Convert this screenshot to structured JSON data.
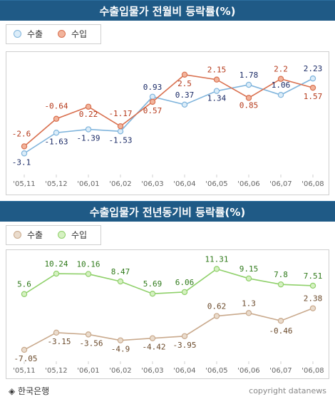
{
  "chart_data": [
    {
      "type": "line",
      "title": "수출입물가 전월비 등락률(%)",
      "categories": [
        "'05,11",
        "'05,12",
        "'06,01",
        "'06,02",
        "'06,03",
        "'06,04",
        "'06,05",
        "'06,06",
        "'06,07",
        "'06,08"
      ],
      "series": [
        {
          "name": "수출",
          "values": [
            -3.1,
            -1.63,
            -1.39,
            -1.53,
            0.93,
            0.37,
            1.34,
            1.78,
            1.06,
            2.23
          ],
          "color": "#7fb4dc"
        },
        {
          "name": "수입",
          "values": [
            -2.6,
            -0.64,
            0.22,
            -1.17,
            0.57,
            2.5,
            2.15,
            0.85,
            2.2,
            1.57
          ],
          "color": "#d9704f"
        }
      ],
      "ylim": [
        -4,
        3.2
      ],
      "grid": false,
      "legend": "top-left"
    },
    {
      "type": "line",
      "title": "수출입물가 전년동기비 등락률(%)",
      "categories": [
        "'05,11",
        "'05,12",
        "'06,01",
        "'06,02",
        "'06,03",
        "'06,04",
        "'06,05",
        "'06,06",
        "'06,07",
        "'06,08"
      ],
      "series": [
        {
          "name": "수출",
          "values": [
            -7.05,
            -3.15,
            -3.56,
            -4.9,
            -4.42,
            -3.95,
            0.62,
            1.3,
            -0.46,
            2.38
          ],
          "color": "#c9a98c"
        },
        {
          "name": "수입",
          "values": [
            5.6,
            10.24,
            10.16,
            8.47,
            5.69,
            6.06,
            11.31,
            9.15,
            7.8,
            7.51
          ],
          "color": "#8fd06a"
        }
      ],
      "ylim": [
        -9,
        13
      ],
      "grid": false,
      "legend": "top-left"
    }
  ],
  "footer": {
    "source": "◈ 한국은행",
    "copyright": "copyright datanews"
  },
  "colors": {
    "header_bg": "#1f5a86",
    "export_line_1": "#7fb4dc",
    "import_line_1": "#d9704f",
    "export_line_2": "#c9a98c",
    "import_line_2": "#8fd06a",
    "label_dark": "#1a2a66",
    "label_red": "#b5391a",
    "label_green": "#2f7a1a",
    "label_brown": "#6b4a2b"
  }
}
